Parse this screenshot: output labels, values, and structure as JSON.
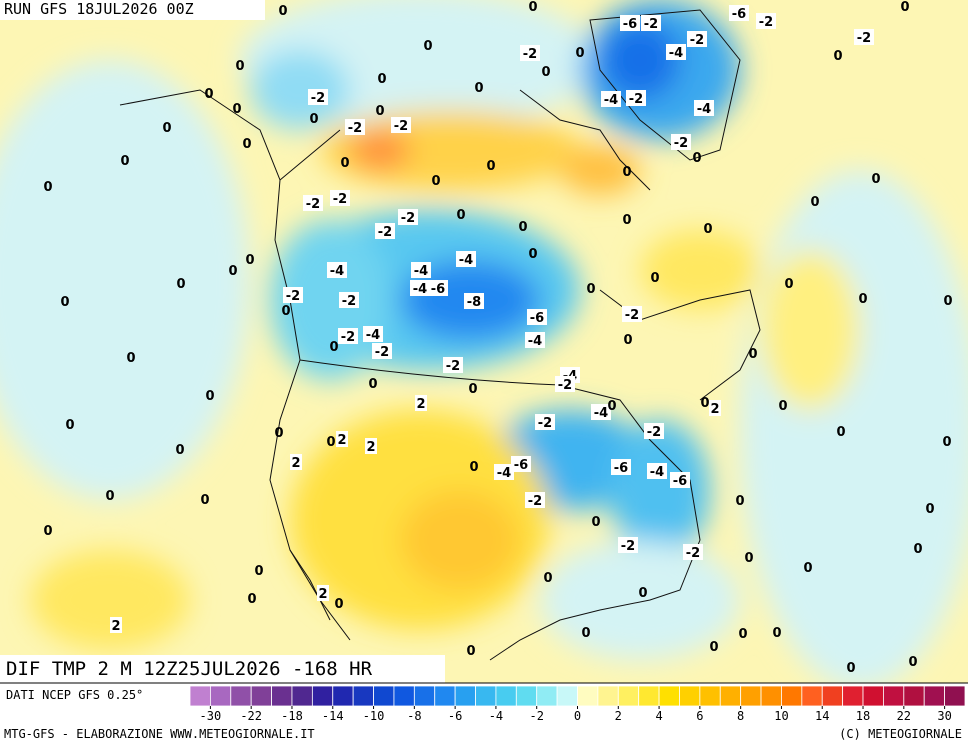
{
  "header": {
    "run": "RUN GFS 18JUL2026 00Z"
  },
  "map": {
    "title": "DIF TMP 2 M 12Z25JUL2026 -168 HR",
    "contour_labels": [
      0,
      0,
      0,
      0,
      0,
      0,
      0,
      0,
      -2,
      0,
      0,
      -2,
      -2,
      0,
      0,
      0,
      0,
      0,
      0,
      0,
      0,
      -2,
      -2,
      -2,
      0,
      -2,
      0,
      0,
      0,
      0,
      0,
      0,
      -4,
      -4,
      -4,
      0,
      0,
      0,
      -4,
      -6,
      0,
      0,
      0,
      -2,
      -2,
      -8,
      -6,
      -2,
      0,
      0,
      0,
      0,
      -2,
      -4,
      -4,
      0,
      -2,
      0,
      0,
      -2,
      0,
      -4,
      -2,
      0,
      0,
      0,
      2,
      -4,
      0,
      0,
      2,
      0,
      0,
      -2,
      0,
      -2,
      0,
      0,
      2,
      2,
      0,
      0,
      2,
      0,
      -6,
      -4,
      -6,
      -4,
      -6,
      0,
      0,
      -2,
      0,
      0,
      0,
      0,
      -2,
      -2,
      0,
      0,
      0,
      0,
      0,
      2,
      0,
      0,
      0,
      2,
      0,
      0,
      0,
      0,
      0,
      0,
      0,
      -6,
      -2,
      -6,
      -2,
      -2,
      -4,
      -2,
      0,
      0,
      0,
      -2,
      -4,
      -2,
      -4,
      -2,
      0,
      0
    ]
  },
  "legend": {
    "source": "DATI NCEP GFS 0.25°",
    "colors": [
      "#c080d0",
      "#a868c0",
      "#9050a8",
      "#804098",
      "#6a3090",
      "#502890",
      "#3020a0",
      "#2028b0",
      "#1838c0",
      "#1048d0",
      "#1058e0",
      "#1870e8",
      "#2088f0",
      "#28a0f0",
      "#38b8f0",
      "#48ccf0",
      "#60dcf0",
      "#90ecf4",
      "#c8f8f8",
      "#fffcc0",
      "#fff490",
      "#fff060",
      "#ffe830",
      "#ffe000",
      "#ffd000",
      "#ffc000",
      "#ffb000",
      "#ffa000",
      "#ff9000",
      "#ff7800",
      "#ff6020",
      "#f04020",
      "#e02030",
      "#d01030",
      "#c01040",
      "#b01040",
      "#a01050",
      "#901050"
    ],
    "ticks": [
      -30,
      -22,
      -18,
      -14,
      -10,
      -8,
      -6,
      -4,
      -2,
      0,
      2,
      4,
      6,
      8,
      10,
      14,
      18,
      22,
      30
    ]
  },
  "footer": {
    "left": "MTG-GFS - ELABORAZIONE WWW.METEOGIORNALE.IT",
    "right": "(C) METEOGIORNALE"
  }
}
